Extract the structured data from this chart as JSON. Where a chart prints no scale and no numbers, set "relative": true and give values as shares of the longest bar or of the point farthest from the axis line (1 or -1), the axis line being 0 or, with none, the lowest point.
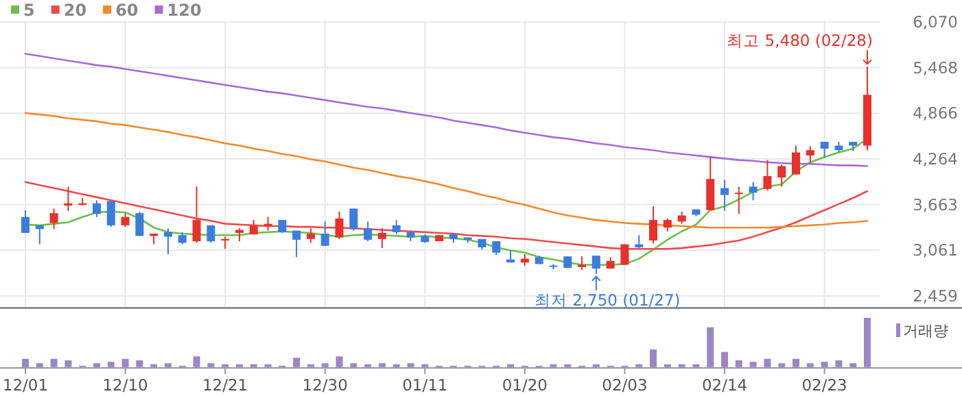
{
  "chart_data": [
    {
      "type": "candlestick",
      "categories": [
        null,
        null,
        null,
        null,
        null,
        null,
        null,
        null,
        null,
        null,
        null,
        null,
        null,
        null,
        null,
        null,
        null,
        null,
        null,
        null,
        null,
        null,
        null,
        null,
        null,
        null,
        null,
        null,
        null,
        null,
        null,
        null,
        null,
        null,
        null,
        null,
        null,
        null,
        null,
        null,
        null,
        null,
        null,
        null,
        null,
        null,
        null,
        null,
        null,
        null,
        null,
        null,
        null,
        null,
        null,
        null,
        null,
        null,
        null,
        null
      ],
      "ohlc": [
        [
          3500,
          3590,
          3290,
          3290
        ],
        [
          3390,
          3390,
          3140,
          3340
        ],
        [
          3420,
          3610,
          3340,
          3550
        ],
        [
          3650,
          3900,
          3580,
          3680
        ],
        [
          3660,
          3750,
          3650,
          3680
        ],
        [
          3680,
          3720,
          3500,
          3540
        ],
        [
          3710,
          3710,
          3370,
          3390
        ],
        [
          3390,
          3550,
          3370,
          3500
        ],
        [
          3550,
          3570,
          3250,
          3250
        ],
        [
          3250,
          3280,
          3140,
          3280
        ],
        [
          3300,
          3350,
          3010,
          3240
        ],
        [
          3260,
          3300,
          3140,
          3160
        ],
        [
          3180,
          3900,
          3160,
          3460
        ],
        [
          3390,
          3390,
          3160,
          3180
        ],
        [
          3190,
          3240,
          3080,
          3210
        ],
        [
          3290,
          3350,
          3180,
          3330
        ],
        [
          3270,
          3460,
          3270,
          3380
        ],
        [
          3380,
          3500,
          3320,
          3410
        ],
        [
          3460,
          3460,
          3290,
          3300
        ],
        [
          3320,
          3320,
          2970,
          3200
        ],
        [
          3210,
          3350,
          3160,
          3280
        ],
        [
          3280,
          3440,
          3120,
          3120
        ],
        [
          3230,
          3570,
          3210,
          3480
        ],
        [
          3610,
          3610,
          3320,
          3340
        ],
        [
          3350,
          3440,
          3180,
          3200
        ],
        [
          3210,
          3350,
          3090,
          3290
        ],
        [
          3390,
          3460,
          3270,
          3300
        ],
        [
          3300,
          3320,
          3180,
          3230
        ],
        [
          3250,
          3270,
          3160,
          3170
        ],
        [
          3180,
          3260,
          3180,
          3260
        ],
        [
          3270,
          3290,
          3160,
          3210
        ],
        [
          3230,
          3230,
          3160,
          3200
        ],
        [
          3210,
          3210,
          3070,
          3100
        ],
        [
          3180,
          3180,
          3000,
          3030
        ],
        [
          2940,
          3060,
          2900,
          2900
        ],
        [
          2900,
          3010,
          2860,
          2950
        ],
        [
          2970,
          2990,
          2880,
          2880
        ],
        [
          2860,
          2880,
          2810,
          2850
        ],
        [
          2980,
          2980,
          2830,
          2830
        ],
        [
          2840,
          2980,
          2800,
          2870
        ],
        [
          2990,
          2990,
          2750,
          2820
        ],
        [
          2820,
          2970,
          2820,
          2920
        ],
        [
          2870,
          3140,
          2870,
          3140
        ],
        [
          3140,
          3260,
          3090,
          3100
        ],
        [
          3190,
          3640,
          3150,
          3460
        ],
        [
          3360,
          3480,
          3310,
          3460
        ],
        [
          3440,
          3570,
          3410,
          3520
        ],
        [
          3600,
          3600,
          3510,
          3530
        ],
        [
          3590,
          4290,
          3590,
          4000
        ],
        [
          3880,
          3990,
          3580,
          3790
        ],
        [
          3810,
          3900,
          3540,
          3820
        ],
        [
          3900,
          3960,
          3720,
          3820
        ],
        [
          3870,
          4250,
          3850,
          4040
        ],
        [
          4020,
          4190,
          3900,
          4170
        ],
        [
          4060,
          4440,
          4060,
          4350
        ],
        [
          4310,
          4430,
          4220,
          4380
        ],
        [
          4490,
          4490,
          4280,
          4400
        ],
        [
          4440,
          4490,
          4350,
          4380
        ],
        [
          4490,
          4490,
          4370,
          4440
        ],
        [
          4440,
          5480,
          4380,
          5110
        ]
      ],
      "colors": [
        "#3b7ddd",
        "#3b7ddd",
        "#e8312a",
        "#e8312a",
        "#e8312a",
        "#3b7ddd",
        "#3b7ddd",
        "#e8312a",
        "#3b7ddd",
        "#e8312a",
        "#3b7ddd",
        "#3b7ddd",
        "#e8312a",
        "#3b7ddd",
        "#e8312a",
        "#e8312a",
        "#e8312a",
        "#e8312a",
        "#3b7ddd",
        "#3b7ddd",
        "#e8312a",
        "#3b7ddd",
        "#e8312a",
        "#3b7ddd",
        "#3b7ddd",
        "#e8312a",
        "#3b7ddd",
        "#3b7ddd",
        "#3b7ddd",
        "#e8312a",
        "#3b7ddd",
        "#3b7ddd",
        "#3b7ddd",
        "#3b7ddd",
        "#3b7ddd",
        "#e8312a",
        "#3b7ddd",
        "#3b7ddd",
        "#3b7ddd",
        "#e8312a",
        "#3b7ddd",
        "#e8312a",
        "#e8312a",
        "#3b7ddd",
        "#e8312a",
        "#e8312a",
        "#e8312a",
        "#3b7ddd",
        "#e8312a",
        "#3b7ddd",
        "#e8312a",
        "#3b7ddd",
        "#e8312a",
        "#e8312a",
        "#e8312a",
        "#e8312a",
        "#3b7ddd",
        "#3b7ddd",
        "#3b7ddd",
        "#e8312a"
      ],
      "series": [
        {
          "name": "5",
          "type": "line",
          "color": "#6cc04a",
          "values": [
            3400,
            3390,
            3410,
            3430,
            3500,
            3560,
            3570,
            3560,
            3480,
            3360,
            3300,
            3280,
            3270,
            3260,
            3260,
            3260,
            3290,
            3300,
            3310,
            3300,
            3290,
            3260,
            3240,
            3260,
            3270,
            3260,
            3250,
            3240,
            3250,
            3230,
            3220,
            3200,
            3160,
            3100,
            3060,
            3030,
            2970,
            2940,
            2900,
            2870,
            2870,
            2870,
            2880,
            2950,
            3070,
            3200,
            3310,
            3400,
            3590,
            3640,
            3730,
            3830,
            3900,
            3930,
            4100,
            4220,
            4290,
            4350,
            4400,
            4530
          ]
        },
        {
          "name": "20",
          "type": "line",
          "color": "#ec4b4b",
          "values": [
            3960,
            3920,
            3880,
            3840,
            3800,
            3760,
            3720,
            3680,
            3640,
            3600,
            3560,
            3520,
            3480,
            3450,
            3410,
            3400,
            3390,
            3380,
            3380,
            3370,
            3370,
            3360,
            3360,
            3350,
            3340,
            3330,
            3320,
            3310,
            3300,
            3290,
            3280,
            3260,
            3250,
            3240,
            3220,
            3210,
            3190,
            3170,
            3150,
            3130,
            3110,
            3090,
            3080,
            3080,
            3080,
            3080,
            3090,
            3110,
            3130,
            3160,
            3190,
            3240,
            3300,
            3360,
            3430,
            3510,
            3590,
            3670,
            3750,
            3840
          ]
        },
        {
          "name": "60",
          "type": "line",
          "color": "#f4892d",
          "values": [
            4870,
            4850,
            4830,
            4800,
            4780,
            4760,
            4730,
            4710,
            4680,
            4650,
            4620,
            4580,
            4550,
            4510,
            4470,
            4440,
            4400,
            4370,
            4330,
            4300,
            4260,
            4230,
            4190,
            4150,
            4120,
            4080,
            4040,
            4010,
            3970,
            3930,
            3880,
            3840,
            3790,
            3750,
            3700,
            3660,
            3610,
            3560,
            3520,
            3490,
            3460,
            3440,
            3420,
            3410,
            3400,
            3390,
            3380,
            3370,
            3360,
            3360,
            3360,
            3360,
            3360,
            3370,
            3380,
            3390,
            3400,
            3420,
            3430,
            3450
          ]
        },
        {
          "name": "120",
          "type": "line",
          "color": "#a76ad6",
          "values": [
            5650,
            5620,
            5590,
            5560,
            5530,
            5500,
            5480,
            5450,
            5420,
            5390,
            5360,
            5330,
            5300,
            5270,
            5240,
            5210,
            5180,
            5150,
            5130,
            5100,
            5070,
            5040,
            5010,
            4980,
            4950,
            4930,
            4900,
            4870,
            4840,
            4810,
            4770,
            4740,
            4710,
            4680,
            4640,
            4610,
            4580,
            4550,
            4530,
            4500,
            4470,
            4450,
            4420,
            4400,
            4380,
            4350,
            4330,
            4310,
            4290,
            4270,
            4250,
            4240,
            4220,
            4210,
            4200,
            4200,
            4190,
            4180,
            4180,
            4170
          ]
        }
      ],
      "ylim": [
        2300,
        6070
      ],
      "yticks": [
        {
          "value": 2459,
          "label": "2,459"
        },
        {
          "value": 3061,
          "label": "3,061"
        },
        {
          "value": 3663,
          "label": "3,663"
        },
        {
          "value": 4264,
          "label": "4,264"
        },
        {
          "value": 4866,
          "label": "4,866"
        },
        {
          "value": 5468,
          "label": "5,468"
        },
        {
          "value": 6070,
          "label": "6,070"
        }
      ],
      "grid": true,
      "legend": "top left",
      "tick_labels": "y",
      "annotations": [
        "최고 5,480 (02/28)",
        "최저 2,750 (01/27)"
      ]
    },
    {
      "type": "bar",
      "relative": true,
      "categories": [
        "12/01",
        null,
        null,
        null,
        null,
        null,
        null,
        "12/10",
        null,
        null,
        null,
        null,
        null,
        null,
        "12/21",
        null,
        null,
        null,
        null,
        null,
        null,
        "12/30",
        null,
        null,
        null,
        null,
        null,
        null,
        "01/11",
        null,
        null,
        null,
        null,
        null,
        null,
        "01/20",
        null,
        null,
        null,
        null,
        null,
        null,
        "02/03",
        null,
        null,
        null,
        null,
        null,
        null,
        "02/14",
        null,
        null,
        null,
        null,
        null,
        null,
        "02/23",
        null,
        null,
        null
      ],
      "series": [
        {
          "name": "거래량",
          "color": "#9b85c9",
          "values": [
            0.17,
            0.08,
            0.17,
            0.14,
            0.03,
            0.08,
            0.11,
            0.17,
            0.14,
            0.06,
            0.08,
            0.03,
            0.22,
            0.08,
            0.06,
            0.06,
            0.06,
            0.06,
            0.03,
            0.19,
            0.06,
            0.08,
            0.22,
            0.08,
            0.06,
            0.08,
            0.06,
            0.08,
            0.06,
            0.03,
            0.03,
            0.01,
            0.03,
            0.03,
            0.06,
            0.03,
            0.03,
            0.06,
            0.06,
            0.03,
            0.06,
            0.03,
            0.03,
            0.06,
            0.36,
            0.06,
            0.06,
            0.06,
            0.81,
            0.31,
            0.14,
            0.11,
            0.17,
            0.08,
            0.17,
            0.08,
            0.11,
            0.14,
            0.08,
            1
          ]
        }
      ],
      "legend": "top right",
      "tick_labels": "x"
    }
  ]
}
